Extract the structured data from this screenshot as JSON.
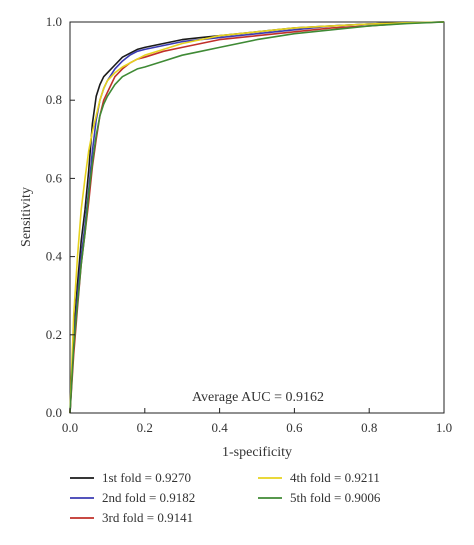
{
  "chart_data": {
    "type": "line",
    "title": "",
    "xlabel": "1-specificity",
    "ylabel": "Sensitivity",
    "xlim": [
      0.0,
      1.0
    ],
    "ylim": [
      0.0,
      1.0
    ],
    "xticks": [
      "0.0",
      "0.2",
      "0.4",
      "0.6",
      "0.8",
      "1.0"
    ],
    "yticks": [
      "0.0",
      "0.2",
      "0.4",
      "0.6",
      "0.8",
      "1.0"
    ],
    "grid": false,
    "annotation": "Average AUC = 0.9162",
    "legend_position": "bottom",
    "series": [
      {
        "name": "1st fold = 0.9270",
        "color": "#1a1a1a",
        "x": [
          0.0,
          0.01,
          0.02,
          0.03,
          0.04,
          0.05,
          0.06,
          0.07,
          0.08,
          0.09,
          0.1,
          0.12,
          0.14,
          0.16,
          0.18,
          0.2,
          0.25,
          0.3,
          0.35,
          0.4,
          0.5,
          0.6,
          0.7,
          0.8,
          0.9,
          1.0
        ],
        "y": [
          0.0,
          0.2,
          0.33,
          0.44,
          0.52,
          0.62,
          0.74,
          0.81,
          0.84,
          0.86,
          0.87,
          0.89,
          0.91,
          0.92,
          0.93,
          0.935,
          0.945,
          0.955,
          0.96,
          0.965,
          0.975,
          0.985,
          0.99,
          0.995,
          0.998,
          1.0
        ]
      },
      {
        "name": "2nd fold = 0.9182",
        "color": "#3b3bb3",
        "x": [
          0.0,
          0.01,
          0.02,
          0.03,
          0.04,
          0.05,
          0.06,
          0.07,
          0.08,
          0.09,
          0.1,
          0.12,
          0.14,
          0.16,
          0.18,
          0.2,
          0.25,
          0.3,
          0.35,
          0.4,
          0.5,
          0.6,
          0.7,
          0.8,
          0.9,
          1.0
        ],
        "y": [
          0.0,
          0.18,
          0.3,
          0.4,
          0.48,
          0.57,
          0.67,
          0.75,
          0.8,
          0.83,
          0.85,
          0.88,
          0.9,
          0.915,
          0.925,
          0.93,
          0.94,
          0.95,
          0.955,
          0.96,
          0.97,
          0.98,
          0.99,
          0.995,
          0.998,
          1.0
        ]
      },
      {
        "name": "3rd fold = 0.9141",
        "color": "#c0302a",
        "x": [
          0.0,
          0.01,
          0.02,
          0.03,
          0.04,
          0.05,
          0.06,
          0.07,
          0.08,
          0.09,
          0.1,
          0.12,
          0.14,
          0.16,
          0.18,
          0.2,
          0.25,
          0.3,
          0.35,
          0.4,
          0.5,
          0.6,
          0.7,
          0.8,
          0.9,
          1.0
        ],
        "y": [
          0.0,
          0.15,
          0.27,
          0.38,
          0.46,
          0.54,
          0.63,
          0.7,
          0.76,
          0.8,
          0.82,
          0.86,
          0.88,
          0.895,
          0.905,
          0.91,
          0.925,
          0.935,
          0.945,
          0.955,
          0.965,
          0.975,
          0.985,
          0.99,
          0.997,
          1.0
        ]
      },
      {
        "name": "4th fold = 0.9211",
        "color": "#e6d21e",
        "x": [
          0.0,
          0.01,
          0.02,
          0.03,
          0.04,
          0.05,
          0.06,
          0.07,
          0.08,
          0.09,
          0.1,
          0.12,
          0.14,
          0.16,
          0.18,
          0.2,
          0.25,
          0.3,
          0.35,
          0.4,
          0.5,
          0.6,
          0.7,
          0.8,
          0.9,
          1.0
        ],
        "y": [
          0.0,
          0.25,
          0.4,
          0.52,
          0.6,
          0.67,
          0.72,
          0.76,
          0.8,
          0.83,
          0.85,
          0.87,
          0.885,
          0.895,
          0.905,
          0.915,
          0.93,
          0.945,
          0.955,
          0.965,
          0.975,
          0.985,
          0.99,
          0.995,
          0.998,
          1.0
        ]
      },
      {
        "name": "5th fold = 0.9006",
        "color": "#3f8a35",
        "x": [
          0.0,
          0.01,
          0.02,
          0.03,
          0.04,
          0.05,
          0.06,
          0.07,
          0.08,
          0.09,
          0.1,
          0.12,
          0.14,
          0.16,
          0.18,
          0.2,
          0.25,
          0.3,
          0.35,
          0.4,
          0.5,
          0.6,
          0.7,
          0.8,
          0.9,
          1.0
        ],
        "y": [
          0.0,
          0.17,
          0.28,
          0.38,
          0.46,
          0.56,
          0.64,
          0.71,
          0.76,
          0.79,
          0.81,
          0.84,
          0.86,
          0.87,
          0.88,
          0.885,
          0.9,
          0.915,
          0.925,
          0.935,
          0.955,
          0.97,
          0.98,
          0.99,
          0.996,
          1.0
        ]
      }
    ]
  }
}
